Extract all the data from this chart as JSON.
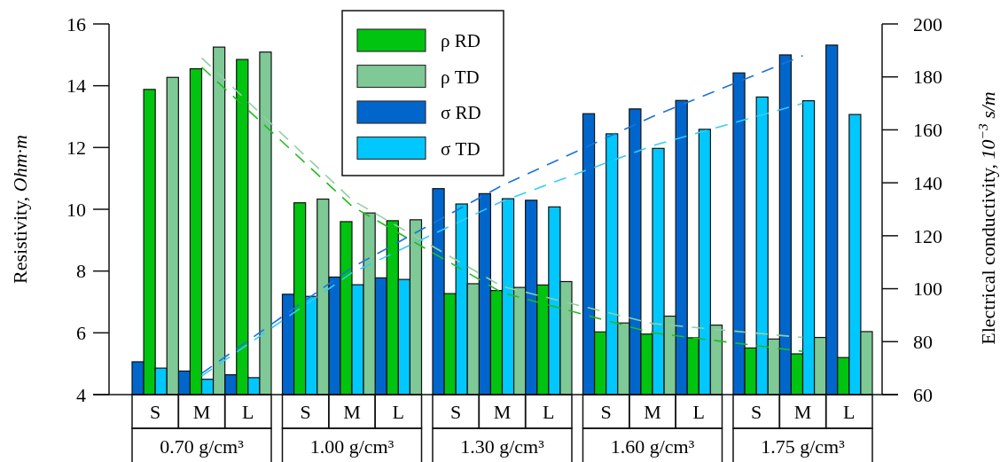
{
  "chart_data": {
    "type": "bar",
    "ylabel": "Resistivity, Ohm·m",
    "y2label": "Electrical conductivity, 10$^{−3}$ s/m",
    "categories": [
      "S",
      "M",
      "L",
      "S",
      "M",
      "L",
      "S",
      "M",
      "L",
      "S",
      "M",
      "L",
      "S",
      "M",
      "L"
    ],
    "annotations": [
      "0.70 g/cm³",
      "1.00 g/cm³",
      "1.30 g/cm³",
      "1.60 g/cm³",
      "1.75 g/cm³"
    ],
    "ylim": [
      4,
      16
    ],
    "yticks": [
      4,
      6,
      8,
      10,
      12,
      14,
      16
    ],
    "y2lim": [
      60,
      200
    ],
    "y2ticks": [
      60,
      80,
      100,
      120,
      140,
      160,
      180,
      200
    ],
    "legend": "top",
    "series": [
      {
        "name": "σ RD",
        "color": "#0066cc",
        "axis": "y2",
        "values": [
          72.4,
          68.9,
          67.5,
          97.9,
          104.4,
          104.1,
          137.8,
          135.9,
          133.4,
          166.1,
          167.9,
          171.1,
          181.5,
          188.3,
          192.0
        ]
      },
      {
        "name": "ρ RD",
        "color": "#00c40f",
        "values": [
          13.88,
          14.55,
          14.85,
          10.21,
          9.6,
          9.63,
          7.27,
          7.37,
          7.55,
          6.03,
          5.96,
          5.84,
          5.51,
          5.32,
          5.2
        ]
      },
      {
        "name": "σ TD",
        "color": "#00c8ff",
        "axis": "y2",
        "values": [
          70.0,
          65.8,
          66.4,
          97.1,
          101.5,
          103.5,
          132.0,
          134.0,
          130.9,
          158.5,
          153.0,
          160.2,
          172.4,
          171.0,
          165.8
        ]
      },
      {
        "name": "ρ TD",
        "color": "#7ec996",
        "values": [
          14.27,
          15.25,
          15.09,
          10.33,
          9.88,
          9.66,
          7.59,
          7.47,
          7.66,
          6.32,
          6.54,
          6.25,
          5.8,
          5.85,
          6.04
        ]
      },
      {
        "type": "line",
        "line_style": "dashed",
        "color": "#22bb22",
        "values": [
          null,
          14.6,
          null,
          null,
          10.1,
          null,
          null,
          7.3,
          null,
          null,
          6.0,
          null,
          null,
          5.4,
          null
        ]
      },
      {
        "type": "line",
        "line_style": "dashed",
        "color": "#8fd0a0",
        "values": [
          null,
          14.9,
          null,
          null,
          10.3,
          null,
          null,
          7.5,
          null,
          null,
          6.3,
          null,
          null,
          5.85,
          null
        ]
      },
      {
        "type": "line",
        "line_style": "dashed",
        "color": "#1a73d9",
        "axis": "y2",
        "values": [
          null,
          68,
          null,
          null,
          108,
          null,
          null,
          139,
          null,
          null,
          165,
          null,
          null,
          188,
          null
        ]
      },
      {
        "type": "line",
        "line_style": "dashed",
        "color": "#33ccff",
        "axis": "y2",
        "values": [
          null,
          67,
          null,
          null,
          106,
          null,
          null,
          133,
          null,
          null,
          154,
          null,
          null,
          170,
          null
        ]
      }
    ]
  }
}
